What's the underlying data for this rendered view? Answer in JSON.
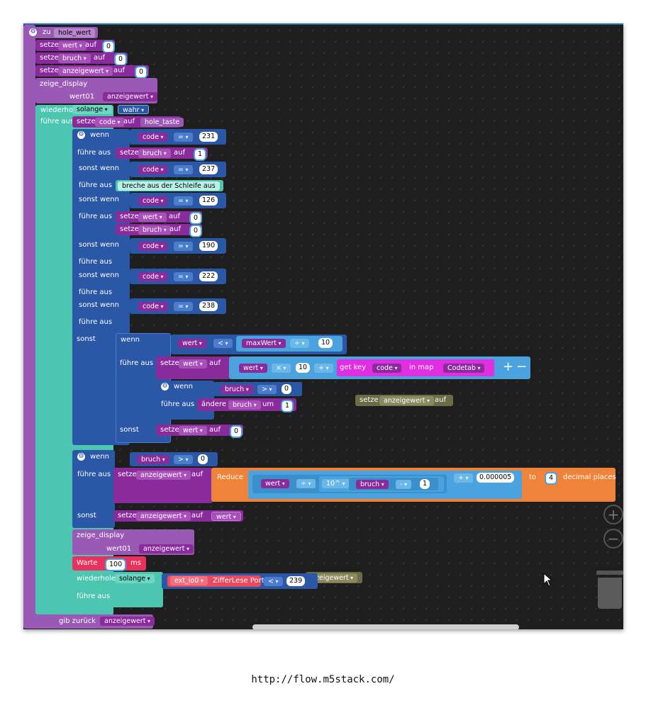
{
  "procedure": {
    "prefix": "zu",
    "name": "hole_wert"
  },
  "block_set": "setze",
  "block_to": "auf",
  "block_do": "führe aus",
  "block_if": "wenn",
  "block_elseif": "sonst wenn",
  "block_else": "sonst",
  "set_vars": [
    {
      "var": "wert",
      "value": "0"
    },
    {
      "var": "bruch",
      "value": "0"
    },
    {
      "var": "anzeigewert",
      "value": "0"
    }
  ],
  "display1": {
    "label": "zeige_display",
    "param": "wert01",
    "arg": "anzeigewert"
  },
  "loop": {
    "label": "wiederhol",
    "mode": "solange",
    "cond": "wahr"
  },
  "set_code": {
    "var": "code",
    "value": "hole_taste"
  },
  "cond_cases": [
    {
      "var": "code",
      "op": "=",
      "value": "231"
    },
    {
      "var": "code",
      "op": "=",
      "value": "237"
    },
    {
      "var": "code",
      "op": "=",
      "value": "126"
    },
    {
      "var": "code",
      "op": "=",
      "value": "190"
    },
    {
      "var": "code",
      "op": "=",
      "value": "222"
    },
    {
      "var": "code",
      "op": "=",
      "value": "238"
    }
  ],
  "case1_do": {
    "var": "bruch",
    "value": "1"
  },
  "case2_do": "breche aus der Schleife aus",
  "case3_do": [
    {
      "var": "wert",
      "value": "0"
    },
    {
      "var": "bruch",
      "value": "0"
    }
  ],
  "else_if": {
    "var": "wert",
    "op": "<",
    "rvar": "maxWert",
    "rop": "÷",
    "rval": "10"
  },
  "else_set": {
    "var": "wert",
    "a": "wert",
    "op": "×",
    "b": "10",
    "plus": "+",
    "getkey": "get key",
    "key": "code",
    "inmap": "in map",
    "map": "Codetab"
  },
  "inner_if": {
    "var": "bruch",
    "op": ">",
    "value": "0",
    "action": "ändere",
    "avar": "bruch",
    "um": "um",
    "aval": "1"
  },
  "else_set2": {
    "var": "wert",
    "value": "0"
  },
  "stray_block": {
    "var": "anzeigewert"
  },
  "if2": {
    "var": "bruch",
    "op": ">",
    "value": "0"
  },
  "reduce": {
    "label": "Reduce",
    "a": "wert",
    "op": "÷",
    "pow": "10^",
    "b": "bruch",
    "minus": "-",
    "c": "1",
    "plus": "+",
    "d": "0.000005",
    "to": "to",
    "places": "4",
    "suffix": "decimal places"
  },
  "if2_else": {
    "var": "anzeigewert",
    "value": "wert"
  },
  "display2": {
    "label": "zeige_display",
    "param": "wert01",
    "arg": "anzeigewert"
  },
  "wait": {
    "label": "Warte",
    "value": "100",
    "unit": "ms"
  },
  "loop2": {
    "label": "wiederhole",
    "mode": "solange",
    "port": "ext_io0",
    "func": "ZifferLese Port",
    "op": "<",
    "value": "239",
    "overlap": "nzeigewert"
  },
  "return": {
    "label": "gib zurück",
    "value": "anzeigewert"
  },
  "controls": {
    "plus": "+",
    "minus": "−",
    "zoom_in": "+",
    "zoom_out": "−"
  },
  "caption": "http://flow.m5stack.com/",
  "colors": {
    "procedure": "#8e4fb3",
    "variable": "#8a2b9c",
    "logic": "#2a57a6",
    "math": "#4aa3df",
    "loop": "#4cc6b0",
    "reduce": "#f0833a",
    "wait": "#e8315d",
    "io": "#e84a5f"
  }
}
